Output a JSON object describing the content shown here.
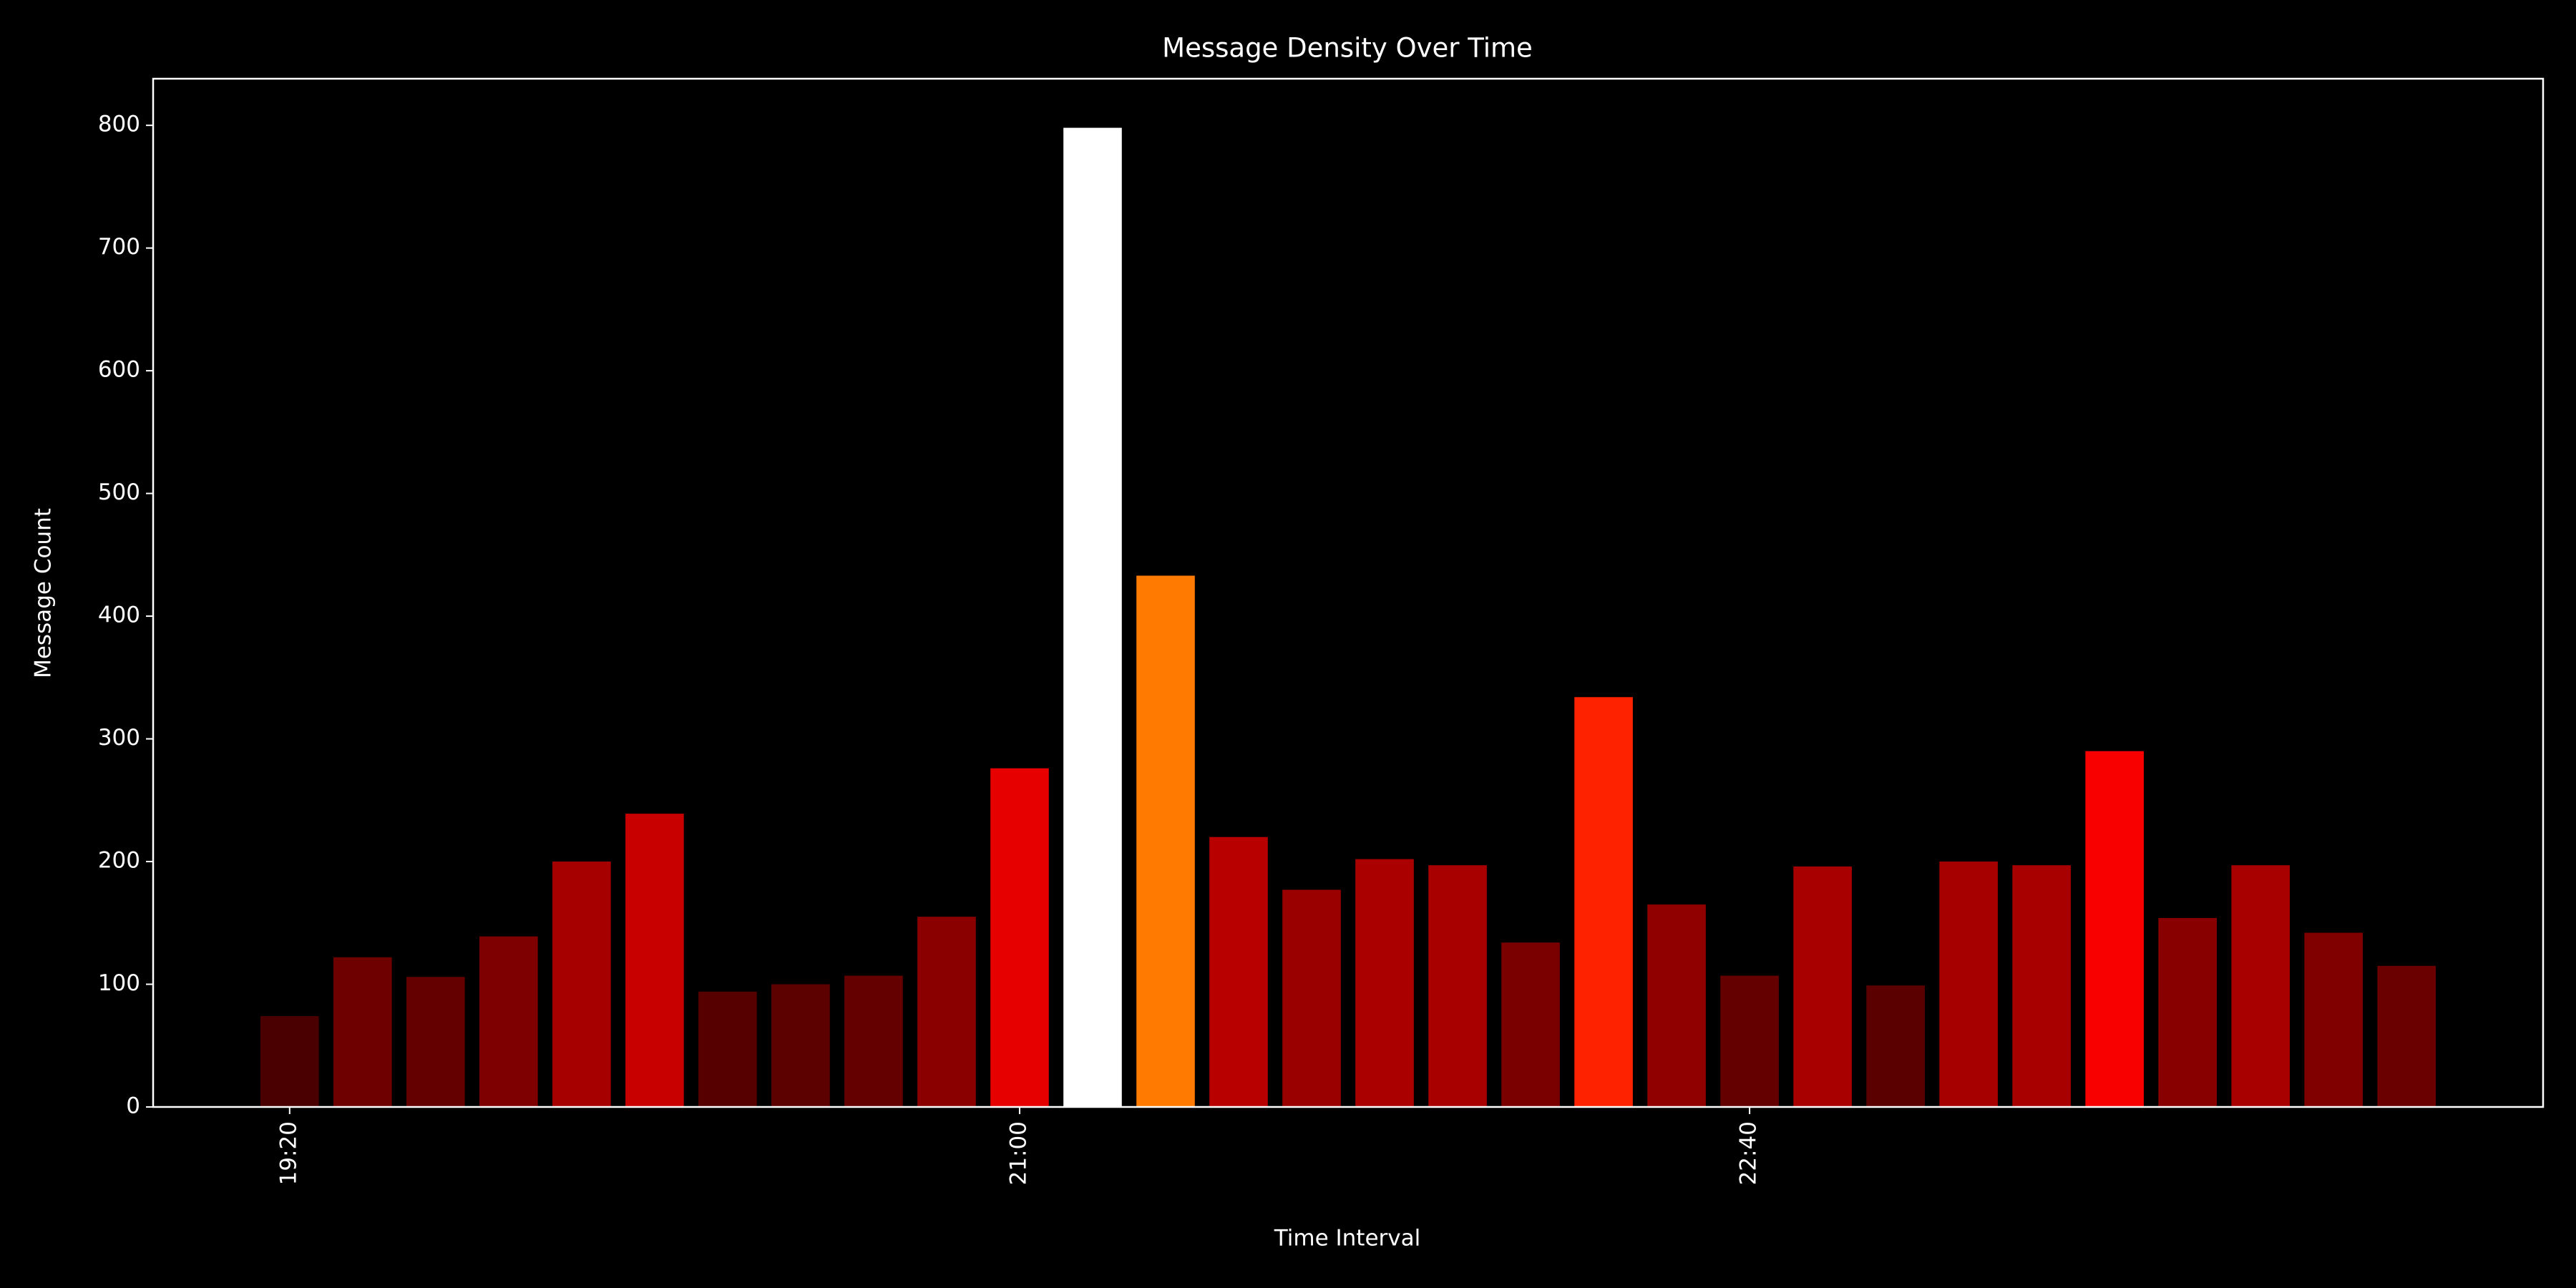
{
  "chart_data": {
    "type": "bar",
    "title": "Message Density Over Time",
    "x_label": "Time Interval",
    "y_label": "Message Count",
    "categories": [
      "19:20",
      null,
      null,
      null,
      null,
      null,
      null,
      null,
      null,
      null,
      "21:00",
      null,
      null,
      null,
      null,
      null,
      null,
      null,
      null,
      null,
      "22:40",
      null,
      null,
      null,
      null,
      null,
      null,
      null,
      null,
      null
    ],
    "values": [
      74,
      122,
      106,
      139,
      200,
      239,
      94,
      100,
      107,
      155,
      276,
      798,
      433,
      220,
      177,
      202,
      197,
      134,
      334,
      165,
      107,
      196,
      99,
      200,
      197,
      290,
      154,
      197,
      142,
      115
    ],
    "colors": [
      "#4a0000",
      "#6e0000",
      "#640000",
      "#7e0000",
      "#a60000",
      "#c80000",
      "#560000",
      "#5c0000",
      "#640000",
      "#8a0000",
      "#e60000",
      "#ffffff",
      "#ff7a00",
      "#b80000",
      "#9a0000",
      "#aa0000",
      "#a80000",
      "#7a0000",
      "#ff2200",
      "#900000",
      "#640000",
      "#a80000",
      "#5a0000",
      "#a60000",
      "#a80000",
      "#f80000",
      "#880000",
      "#a80000",
      "#800000",
      "#6a0000"
    ],
    "ylim": [
      0,
      838
    ],
    "yticks": [
      0,
      100,
      200,
      300,
      400,
      500,
      600,
      700,
      800
    ],
    "grid": false
  }
}
